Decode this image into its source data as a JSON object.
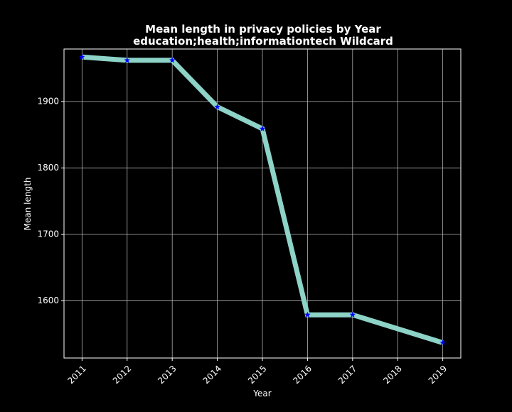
{
  "chart_data": {
    "type": "line",
    "title": "Mean length in privacy policies by Year",
    "subtitle": "education;health;informationtech Wildcard",
    "xlabel": "Year",
    "ylabel": "Mean length",
    "x": [
      2011,
      2012,
      2013,
      2014,
      2015,
      2016,
      2017,
      2018,
      2019
    ],
    "x_ticks": [
      "2011",
      "2012",
      "2013",
      "2014",
      "2015",
      "2016",
      "2017",
      "2018",
      "2019"
    ],
    "series": [
      {
        "x": [
          2011,
          2012,
          2013,
          2014,
          2015,
          2016,
          2017,
          2019
        ],
        "values": [
          1967,
          1962,
          1962,
          1892,
          1859,
          1579,
          1579,
          1537
        ]
      }
    ],
    "y_ticks": [
      1600,
      1700,
      1800,
      1900
    ],
    "xlim": [
      2010.6,
      2019.4
    ],
    "ylim": [
      1514,
      1979
    ],
    "grid": true,
    "colors": {
      "background": "#000000",
      "line": "#8dd3c7",
      "marker": "#0000ff",
      "text": "#ffffff",
      "grid": "#b0b0b0"
    }
  }
}
